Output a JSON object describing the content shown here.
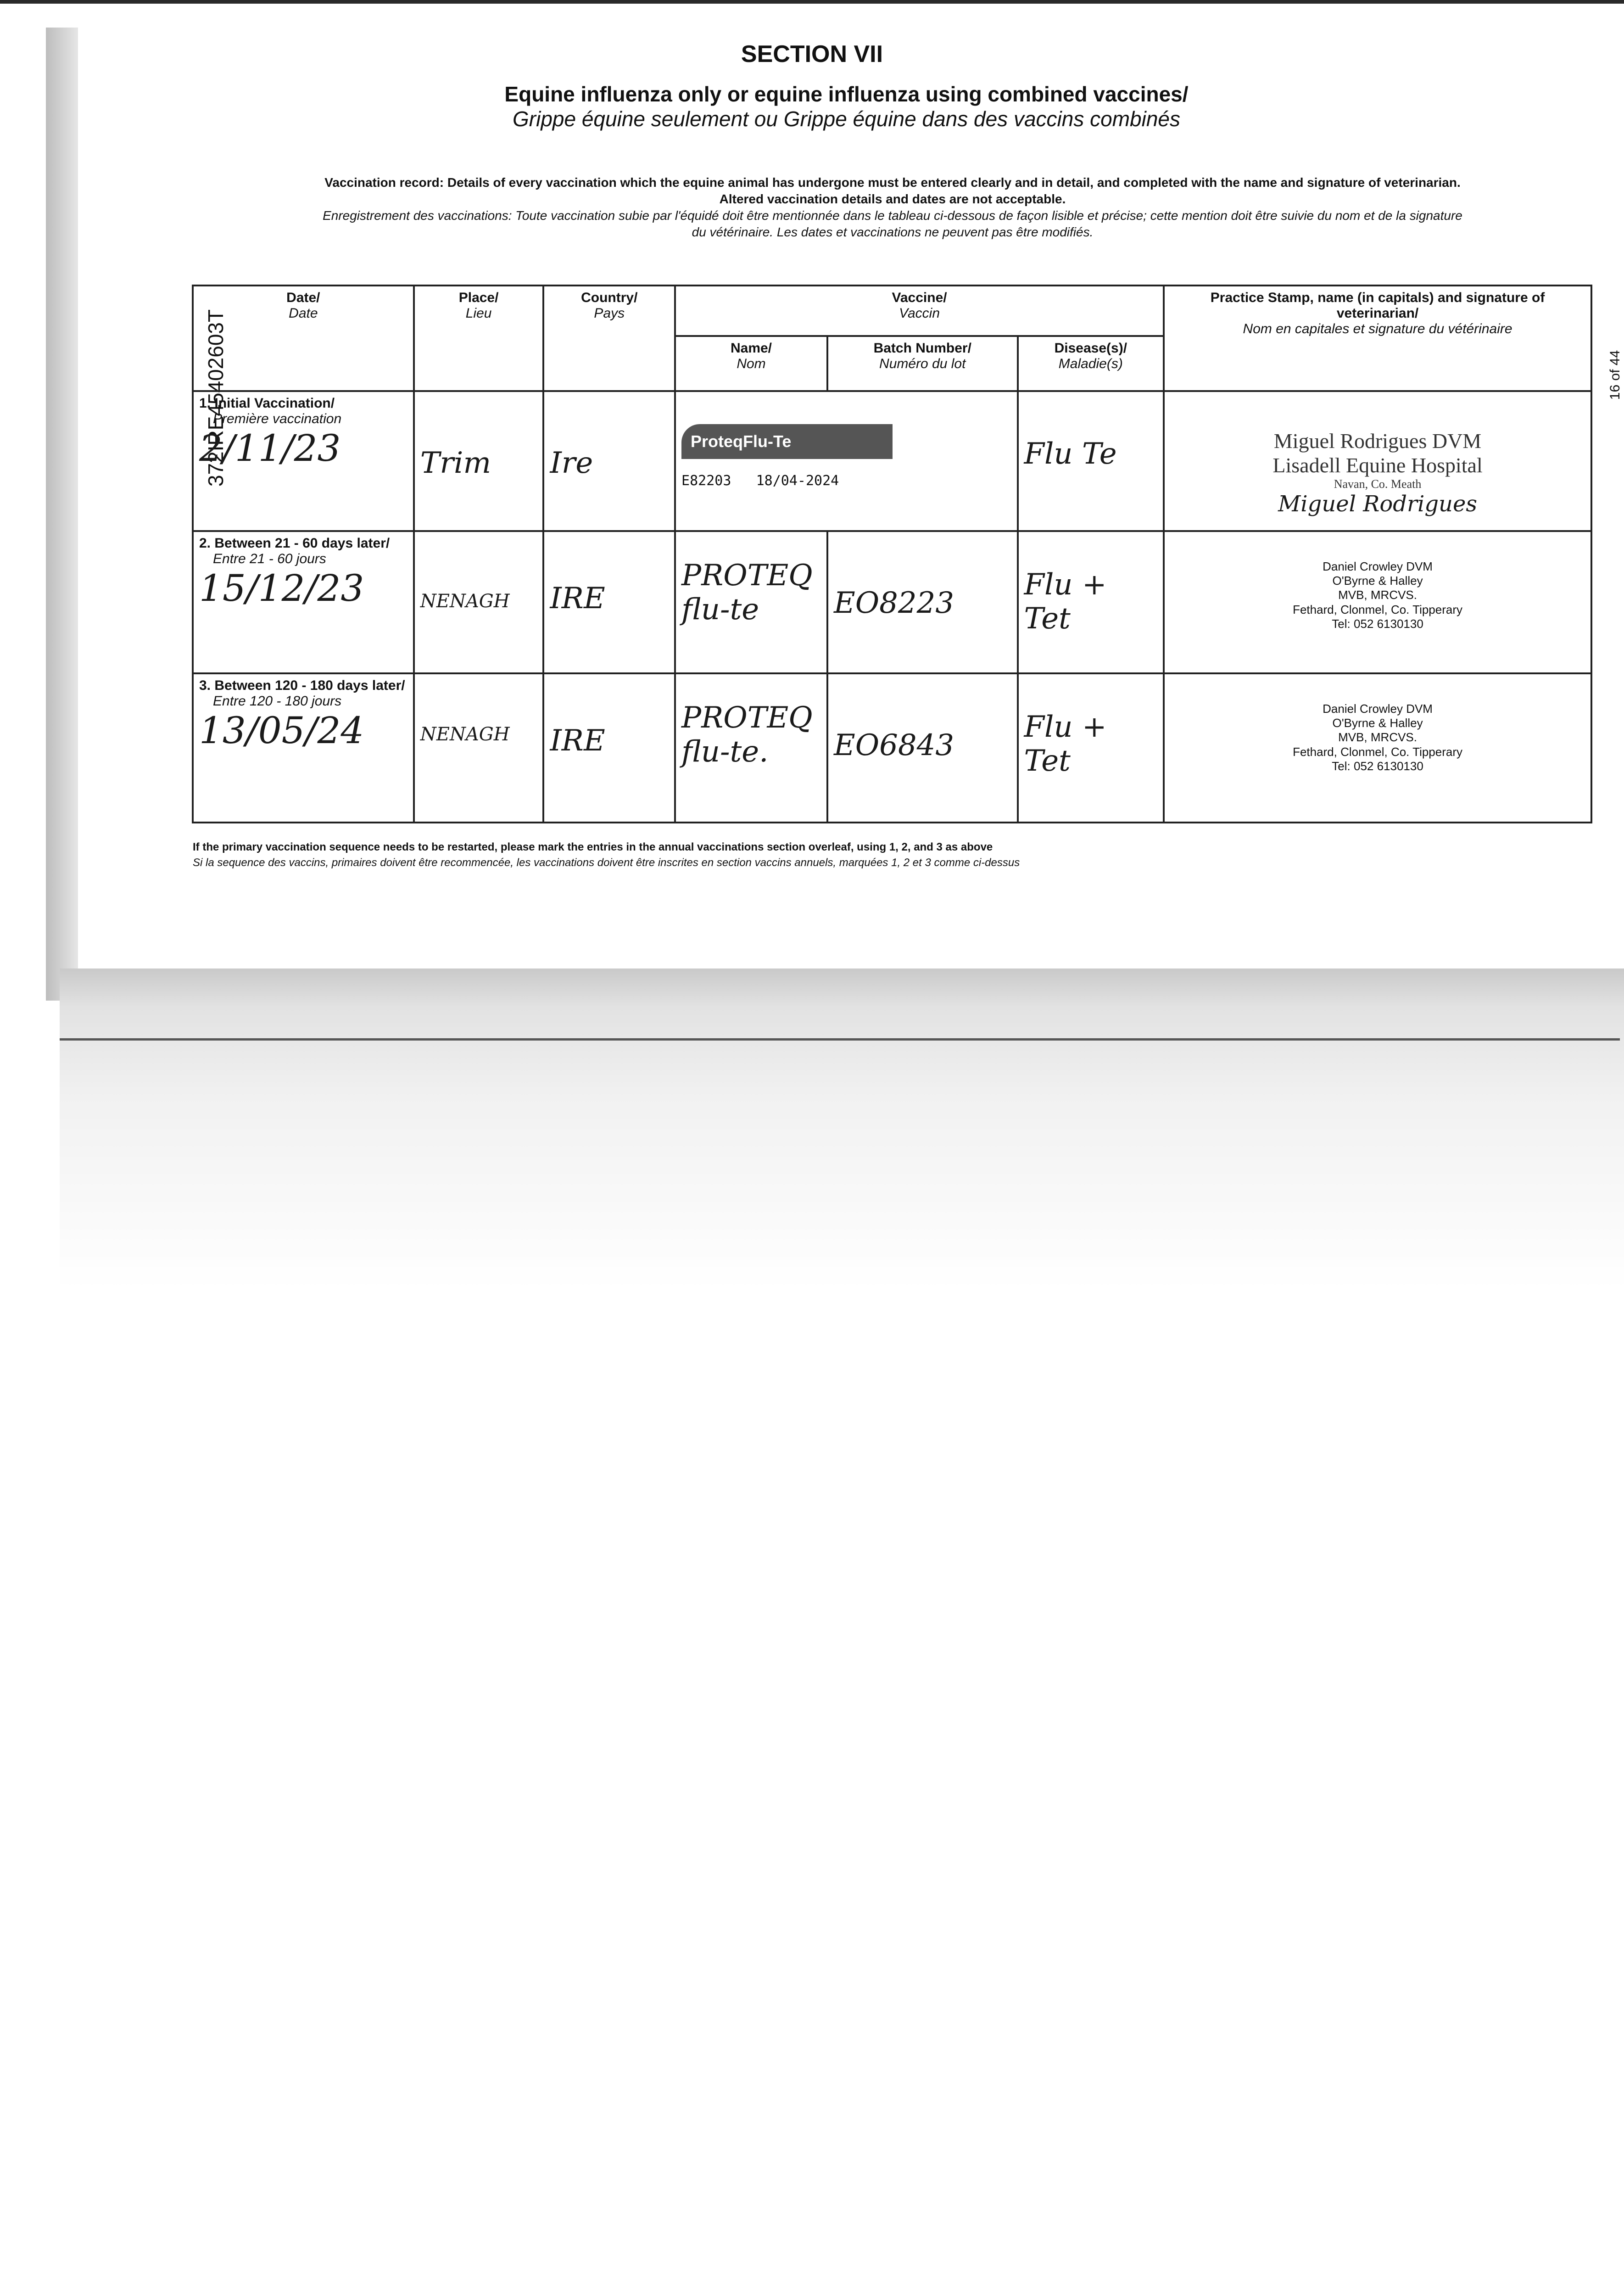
{
  "section": "SECTION VII",
  "title_en": "Equine influenza only or equine influenza using combined vaccines/",
  "title_fr": "Grippe équine seulement ou Grippe équine dans des vaccins combinés",
  "instructions": {
    "en_1": "Vaccination record: Details of every vaccination which the equine animal has undergone must be entered clearly and in detail, and completed with the name and signature of veterinarian.",
    "en_2": "Altered vaccination details and dates are not acceptable.",
    "fr_1": "Enregistrement des vaccinations: Toute vaccination subie par l'équidé doit être mentionnée dans le tableau ci-dessous de façon lisible et précise; cette mention doit être suivie du nom et de la signature",
    "fr_2": "du vétérinaire. Les dates et vaccinations ne peuvent pas être modifiés."
  },
  "side_id": "372IRE45402603T",
  "page_number": "16 of 44",
  "headers": {
    "date": "Date/",
    "date_fr": "Date",
    "place": "Place/",
    "place_fr": "Lieu",
    "country": "Country/",
    "country_fr": "Pays",
    "vaccine": "Vaccine/",
    "vaccine_fr": "Vaccin",
    "name": "Name/",
    "name_fr": "Nom",
    "batch": "Batch Number/",
    "batch_fr": "Numéro du lot",
    "disease": "Disease(s)/",
    "disease_fr": "Maladie(s)",
    "vet": "Practice Stamp, name (in capitals) and signature of veterinarian/",
    "vet_fr": "Nom en capitales et signature du vétérinaire"
  },
  "rows": [
    {
      "label": "1. Initial Vaccination/",
      "label_fr": "Première vaccination",
      "date": "2/11/23",
      "place": "Trim",
      "country": "Ire",
      "vaccine_label": "ProteqFlu-Te",
      "vaccine_batch": "E82203",
      "vaccine_exp": "18/04-2024",
      "disease": "Flu Te",
      "vet_name": "Miguel Rodrigues DVM",
      "vet_practice": "Lisadell Equine Hospital",
      "vet_address": "Navan, Co. Meath",
      "vet_signature": "Miguel Rodrigues"
    },
    {
      "label": "2. Between 21 - 60 days later/",
      "label_fr": "Entre 21 - 60 jours",
      "date": "15/12/23",
      "place": "NENAGH",
      "country": "IRE",
      "vaccine_name": "PROTEQ flu-te",
      "batch": "EO8223",
      "disease": "Flu + Tet",
      "stamp": [
        "Daniel Crowley DVM",
        "O'Byrne & Halley",
        "MVB, MRCVS.",
        "Fethard, Clonmel, Co. Tipperary",
        "Tel: 052 6130130"
      ]
    },
    {
      "label": "3. Between 120 - 180 days later/",
      "label_fr": "Entre 120 - 180 jours",
      "date": "13/05/24",
      "place": "NENAGH",
      "country": "IRE",
      "vaccine_name": "PROTEQ flu-te.",
      "batch": "EO6843",
      "disease": "Flu + Tet",
      "stamp": [
        "Daniel Crowley DVM",
        "O'Byrne & Halley",
        "MVB, MRCVS.",
        "Fethard, Clonmel, Co. Tipperary",
        "Tel: 052 6130130"
      ]
    }
  ],
  "footnote_en": "If the primary vaccination sequence needs to be restarted, please mark the entries in the annual vaccinations section overleaf, using 1, 2, and 3 as above",
  "footnote_fr": "Si la sequence des vaccins, primaires doivent être recommencée, les vaccinations doivent être inscrites en section vaccins annuels, marquées 1, 2 et 3 comme ci-dessus"
}
